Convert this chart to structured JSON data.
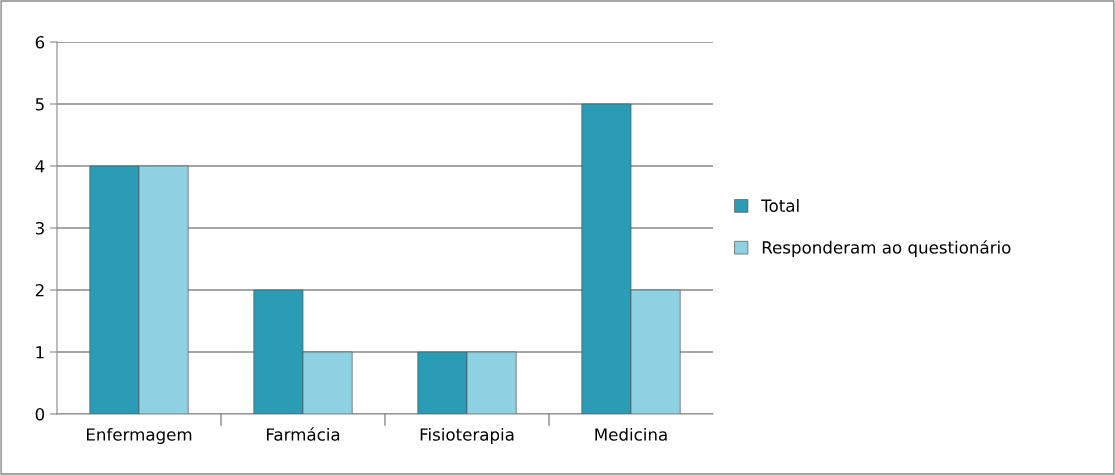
{
  "chart_data": {
    "type": "bar",
    "categories": [
      "Enfermagem",
      "Farmácia",
      "Fisioterapia",
      "Medicina"
    ],
    "series": [
      {
        "name": "Total",
        "color": "#2b9cb6",
        "values": [
          4,
          2,
          1,
          5
        ]
      },
      {
        "name": "Responderam ao questionário",
        "color": "#8ed1e2",
        "values": [
          4,
          1,
          1,
          2
        ]
      }
    ],
    "ylim": [
      0,
      6
    ],
    "yticks": [
      0,
      1,
      2,
      3,
      4,
      5,
      6
    ],
    "grid": "y",
    "legend": "right"
  }
}
